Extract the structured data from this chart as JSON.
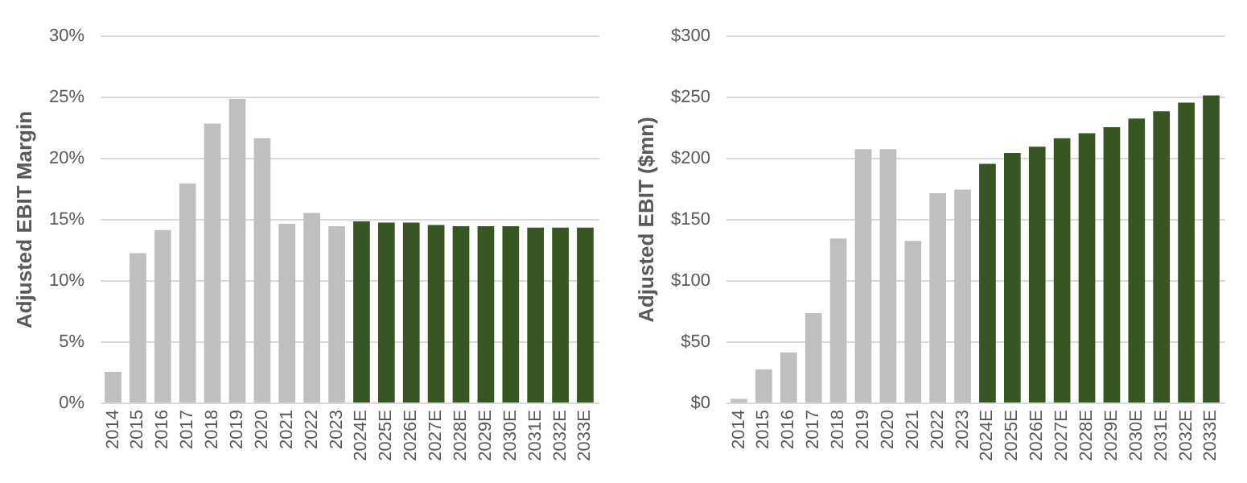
{
  "chart_data": [
    {
      "type": "bar",
      "ylabel": "Adjusted EBIT Margin",
      "categories": [
        "2014",
        "2015",
        "2016",
        "2017",
        "2018",
        "2019",
        "2020",
        "2021",
        "2022",
        "2023",
        "2024E",
        "2025E",
        "2026E",
        "2027E",
        "2028E",
        "2029E",
        "2030E",
        "2031E",
        "2032E",
        "2033E"
      ],
      "values": [
        2.5,
        12.2,
        14.1,
        17.9,
        22.8,
        24.8,
        21.6,
        14.6,
        15.5,
        14.4,
        14.8,
        14.7,
        14.7,
        14.5,
        14.4,
        14.4,
        14.4,
        14.3,
        14.3,
        14.3
      ],
      "colors": [
        "#bfbfbf",
        "#bfbfbf",
        "#bfbfbf",
        "#bfbfbf",
        "#bfbfbf",
        "#bfbfbf",
        "#bfbfbf",
        "#bfbfbf",
        "#bfbfbf",
        "#bfbfbf",
        "#375623",
        "#375623",
        "#375623",
        "#375623",
        "#375623",
        "#375623",
        "#375623",
        "#375623",
        "#375623",
        "#375623"
      ],
      "ylim": [
        0,
        30
      ],
      "yticks": [
        {
          "value": 0,
          "label": "0%"
        },
        {
          "value": 5,
          "label": "5%"
        },
        {
          "value": 10,
          "label": "10%"
        },
        {
          "value": 15,
          "label": "15%"
        },
        {
          "value": 20,
          "label": "20%"
        },
        {
          "value": 25,
          "label": "25%"
        },
        {
          "value": 30,
          "label": "30%"
        }
      ],
      "grid": "y"
    },
    {
      "type": "bar",
      "ylabel": "Adjusted EBIT ($mn)",
      "categories": [
        "2014",
        "2015",
        "2016",
        "2017",
        "2018",
        "2019",
        "2020",
        "2021",
        "2022",
        "2023",
        "2024E",
        "2025E",
        "2026E",
        "2027E",
        "2028E",
        "2029E",
        "2030E",
        "2031E",
        "2032E",
        "2033E"
      ],
      "values": [
        3,
        27,
        41,
        73,
        134,
        207,
        207,
        132,
        171,
        174,
        195,
        204,
        209,
        216,
        220,
        225,
        232,
        238,
        245,
        251
      ],
      "colors": [
        "#bfbfbf",
        "#bfbfbf",
        "#bfbfbf",
        "#bfbfbf",
        "#bfbfbf",
        "#bfbfbf",
        "#bfbfbf",
        "#bfbfbf",
        "#bfbfbf",
        "#bfbfbf",
        "#375623",
        "#375623",
        "#375623",
        "#375623",
        "#375623",
        "#375623",
        "#375623",
        "#375623",
        "#375623",
        "#375623"
      ],
      "ylim": [
        0,
        300
      ],
      "yticks": [
        {
          "value": 0,
          "label": "$0"
        },
        {
          "value": 50,
          "label": "$50"
        },
        {
          "value": 100,
          "label": "$100"
        },
        {
          "value": 150,
          "label": "$150"
        },
        {
          "value": 200,
          "label": "$200"
        },
        {
          "value": 250,
          "label": "$250"
        },
        {
          "value": 300,
          "label": "$300"
        }
      ],
      "grid": "y"
    }
  ]
}
